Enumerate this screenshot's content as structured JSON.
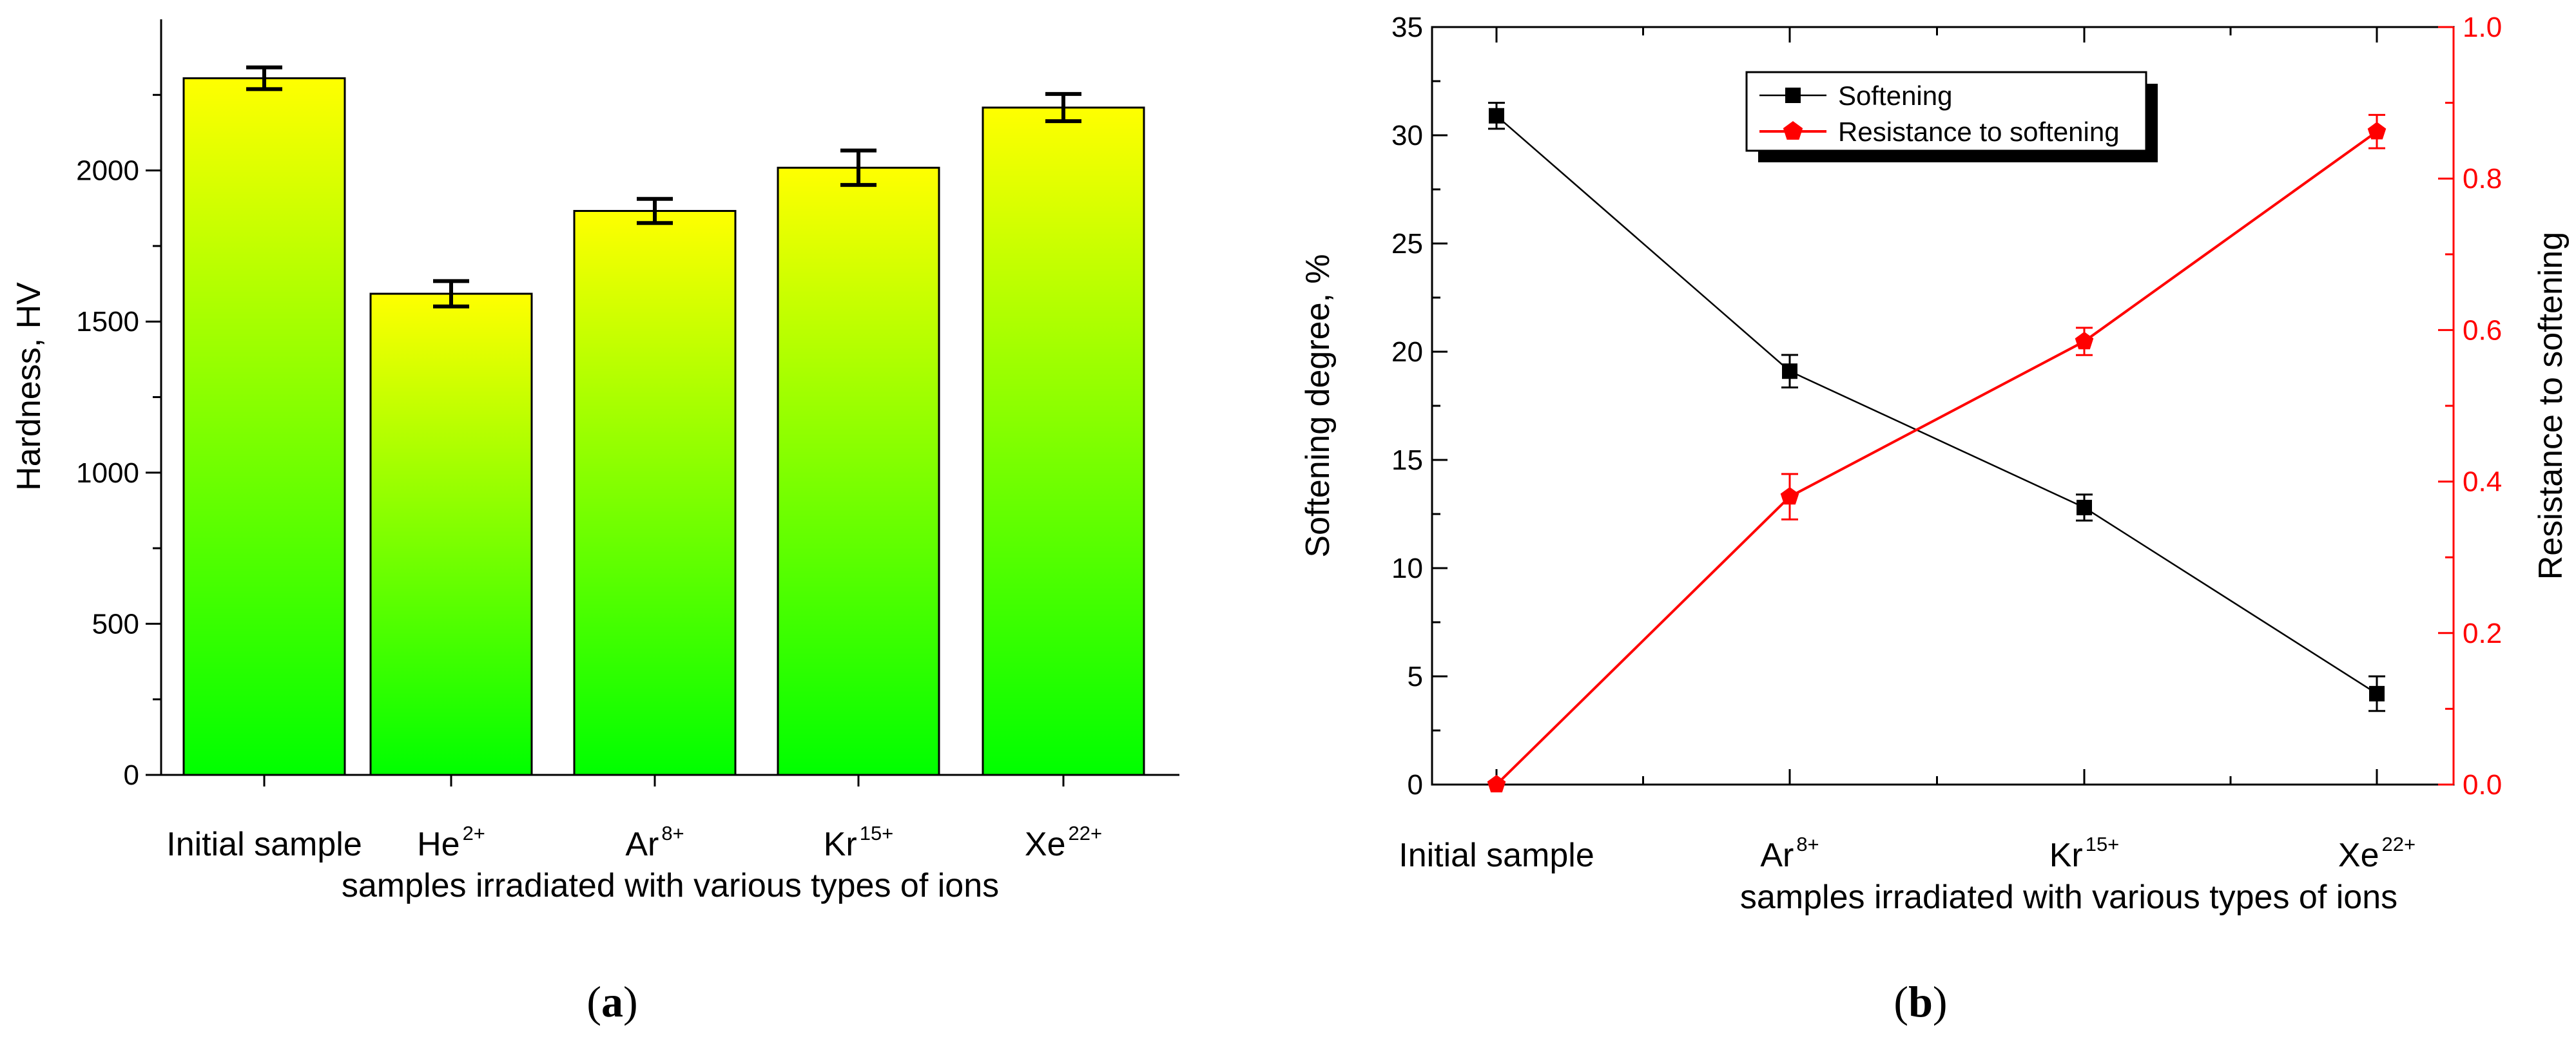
{
  "chart_data": [
    {
      "type": "bar",
      "panel": "a",
      "categories": [
        {
          "base": "Initial sample",
          "sup": ""
        },
        {
          "base": "He",
          "sup": "2+"
        },
        {
          "base": "Ar",
          "sup": "8+"
        },
        {
          "base": "Kr",
          "sup": "15+"
        },
        {
          "base": "Xe",
          "sup": "22+"
        }
      ],
      "values": [
        2305,
        1592,
        1866,
        2009,
        2208
      ],
      "errors": [
        36,
        42,
        40,
        57,
        45
      ],
      "title": "",
      "xlabel": "samples irradiated with various types of ions",
      "ylabel": "Hardness, HV",
      "ylim": [
        0,
        2500
      ],
      "yticks": [
        0,
        500,
        1000,
        1500,
        2000
      ],
      "fill_gradient": [
        "#ffff00",
        "#00ff00"
      ]
    },
    {
      "type": "line",
      "panel": "b",
      "categories": [
        {
          "base": "Initial sample",
          "sup": ""
        },
        {
          "base": "Ar",
          "sup": "8+"
        },
        {
          "base": "Kr",
          "sup": "15+"
        },
        {
          "base": "Xe",
          "sup": "22+"
        }
      ],
      "series": [
        {
          "name": "Softening",
          "axis": "left",
          "color": "#000000",
          "marker": "square",
          "values": [
            30.9,
            19.1,
            12.8,
            4.2
          ],
          "errors": [
            0.6,
            0.75,
            0.6,
            0.8
          ]
        },
        {
          "name": "Resistance to softening",
          "axis": "right",
          "color": "#ff0000",
          "marker": "pentagon",
          "values": [
            0.0,
            0.38,
            0.585,
            0.862
          ],
          "errors": [
            0.0,
            0.03,
            0.018,
            0.022
          ]
        }
      ],
      "xlabel": "samples irradiated with various types of ions",
      "ylabel_left": "Softening degree, %",
      "ylabel_right": "Resistance to softening",
      "ylim_left": [
        0,
        35
      ],
      "ylim_right": [
        0,
        1.0
      ],
      "yticks_left": [
        0,
        5,
        10,
        15,
        20,
        25,
        30,
        35
      ],
      "yticks_right": [
        0.0,
        0.2,
        0.4,
        0.6,
        0.8,
        1.0
      ],
      "legend_position": "top-center"
    }
  ],
  "panel_labels": {
    "a": "a",
    "b": "b"
  }
}
